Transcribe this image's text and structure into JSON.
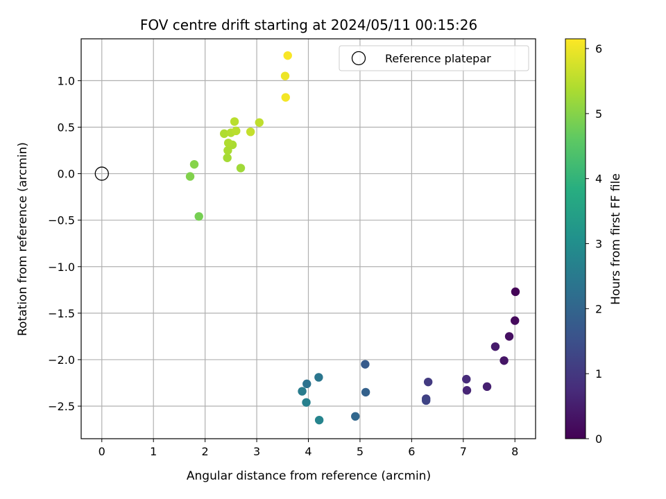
{
  "chart_data": {
    "type": "scatter",
    "title": "FOV centre drift starting at 2024/05/11 00:15:26",
    "xlabel": "Angular distance from reference (arcmin)",
    "ylabel": "Rotation from reference (arcmin)",
    "xlim": [
      -0.4,
      8.4
    ],
    "ylim": [
      -2.85,
      1.45
    ],
    "xticks": [
      0,
      1,
      2,
      3,
      4,
      5,
      6,
      7,
      8
    ],
    "yticks": [
      -2.5,
      -2.0,
      -1.5,
      -1.0,
      -0.5,
      0.0,
      0.5,
      1.0
    ],
    "xtick_labels": [
      "0",
      "1",
      "2",
      "3",
      "4",
      "5",
      "6",
      "7",
      "8"
    ],
    "ytick_labels": [
      "−2.5",
      "−2.0",
      "−1.5",
      "−1.0",
      "−0.5",
      "0.0",
      "0.5",
      "1.0"
    ],
    "grid": true,
    "colormap": "viridis",
    "colorbar": {
      "label": "Hours from first FF file",
      "range": [
        0,
        6.15
      ],
      "ticks": [
        0,
        1,
        2,
        3,
        4,
        5,
        6
      ],
      "tick_labels": [
        "0",
        "1",
        "2",
        "3",
        "4",
        "5",
        "6"
      ]
    },
    "legend": {
      "position": "top-right",
      "entries": [
        "Reference platepar"
      ]
    },
    "reference_point": {
      "x": 0,
      "y": 0
    },
    "points": [
      {
        "x": 8.01,
        "y": -1.27,
        "hours": 0.05
      },
      {
        "x": 8.0,
        "y": -1.58,
        "hours": 0.15
      },
      {
        "x": 7.89,
        "y": -1.75,
        "hours": 0.25
      },
      {
        "x": 7.79,
        "y": -2.01,
        "hours": 0.35
      },
      {
        "x": 7.62,
        "y": -1.86,
        "hours": 0.45
      },
      {
        "x": 7.46,
        "y": -2.29,
        "hours": 0.55
      },
      {
        "x": 7.07,
        "y": -2.33,
        "hours": 0.65
      },
      {
        "x": 7.06,
        "y": -2.21,
        "hours": 0.75
      },
      {
        "x": 6.32,
        "y": -2.24,
        "hours": 1.05
      },
      {
        "x": 6.28,
        "y": -2.42,
        "hours": 1.15
      },
      {
        "x": 6.28,
        "y": -2.44,
        "hours": 1.25
      },
      {
        "x": 5.1,
        "y": -2.05,
        "hours": 1.75
      },
      {
        "x": 5.11,
        "y": -2.35,
        "hours": 1.9
      },
      {
        "x": 4.91,
        "y": -2.61,
        "hours": 2.05
      },
      {
        "x": 3.97,
        "y": -2.26,
        "hours": 2.3
      },
      {
        "x": 4.2,
        "y": -2.19,
        "hours": 2.4
      },
      {
        "x": 3.88,
        "y": -2.34,
        "hours": 2.55
      },
      {
        "x": 3.96,
        "y": -2.46,
        "hours": 2.65
      },
      {
        "x": 4.21,
        "y": -2.65,
        "hours": 2.75
      },
      {
        "x": 1.88,
        "y": -0.46,
        "hours": 4.85
      },
      {
        "x": 1.71,
        "y": -0.03,
        "hours": 4.95
      },
      {
        "x": 1.79,
        "y": 0.1,
        "hours": 5.0
      },
      {
        "x": 2.69,
        "y": 0.06,
        "hours": 5.25
      },
      {
        "x": 2.43,
        "y": 0.17,
        "hours": 5.3
      },
      {
        "x": 2.44,
        "y": 0.25,
        "hours": 5.35
      },
      {
        "x": 2.53,
        "y": 0.31,
        "hours": 5.35
      },
      {
        "x": 2.45,
        "y": 0.33,
        "hours": 5.4
      },
      {
        "x": 2.37,
        "y": 0.43,
        "hours": 5.4
      },
      {
        "x": 2.5,
        "y": 0.44,
        "hours": 5.45
      },
      {
        "x": 2.6,
        "y": 0.46,
        "hours": 5.5
      },
      {
        "x": 2.57,
        "y": 0.56,
        "hours": 5.5
      },
      {
        "x": 3.05,
        "y": 0.55,
        "hours": 5.55
      },
      {
        "x": 2.88,
        "y": 0.45,
        "hours": 5.6
      },
      {
        "x": 3.55,
        "y": 1.05,
        "hours": 6.0
      },
      {
        "x": 3.56,
        "y": 0.82,
        "hours": 6.05
      },
      {
        "x": 3.6,
        "y": 1.27,
        "hours": 6.1
      }
    ]
  }
}
